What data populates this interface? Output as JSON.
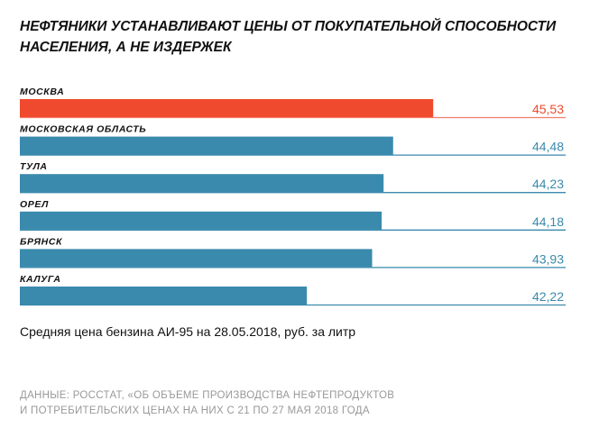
{
  "title": "Нефтяники устанавливают цены от покупательной способности населения, а не издержек",
  "subtitle": "Средняя цена бензина АИ-95 на 28.05.2018, руб. за литр",
  "source_line1": "ДАННЫЕ: РОССТАТ, «ОБ ОБЪЕМЕ ПРОИЗВОДСТВА НЕФТЕПРОДУКТОВ",
  "source_line2": "И ПОТРЕБИТЕЛЬСКИХ ЦЕНАХ НА НИХ С 21 ПО 27 МАЯ 2018 ГОДА",
  "chart_data": {
    "type": "bar",
    "orientation": "horizontal",
    "title": "Нефтяники устанавливают цены от покупательной способности населения, а не издержек",
    "xlabel": "Средняя цена бензина АИ-95 на 28.05.2018, руб. за литр",
    "categories": [
      "МОСКВА",
      "МОСКОВСКАЯ ОБЛАСТЬ",
      "ТУЛА",
      "ОРЕЛ",
      "БРЯНСК",
      "КАЛУГА"
    ],
    "values": [
      45.53,
      44.48,
      44.23,
      44.18,
      43.93,
      42.22
    ],
    "value_labels": [
      "45,53",
      "44,48",
      "44,23",
      "44,18",
      "43,93",
      "42,22"
    ],
    "xlim": [
      34.7,
      49
    ],
    "grid": false,
    "colors": {
      "highlight": "#ef4a2e",
      "default": "#3a8aad"
    },
    "highlight_index": 0
  }
}
